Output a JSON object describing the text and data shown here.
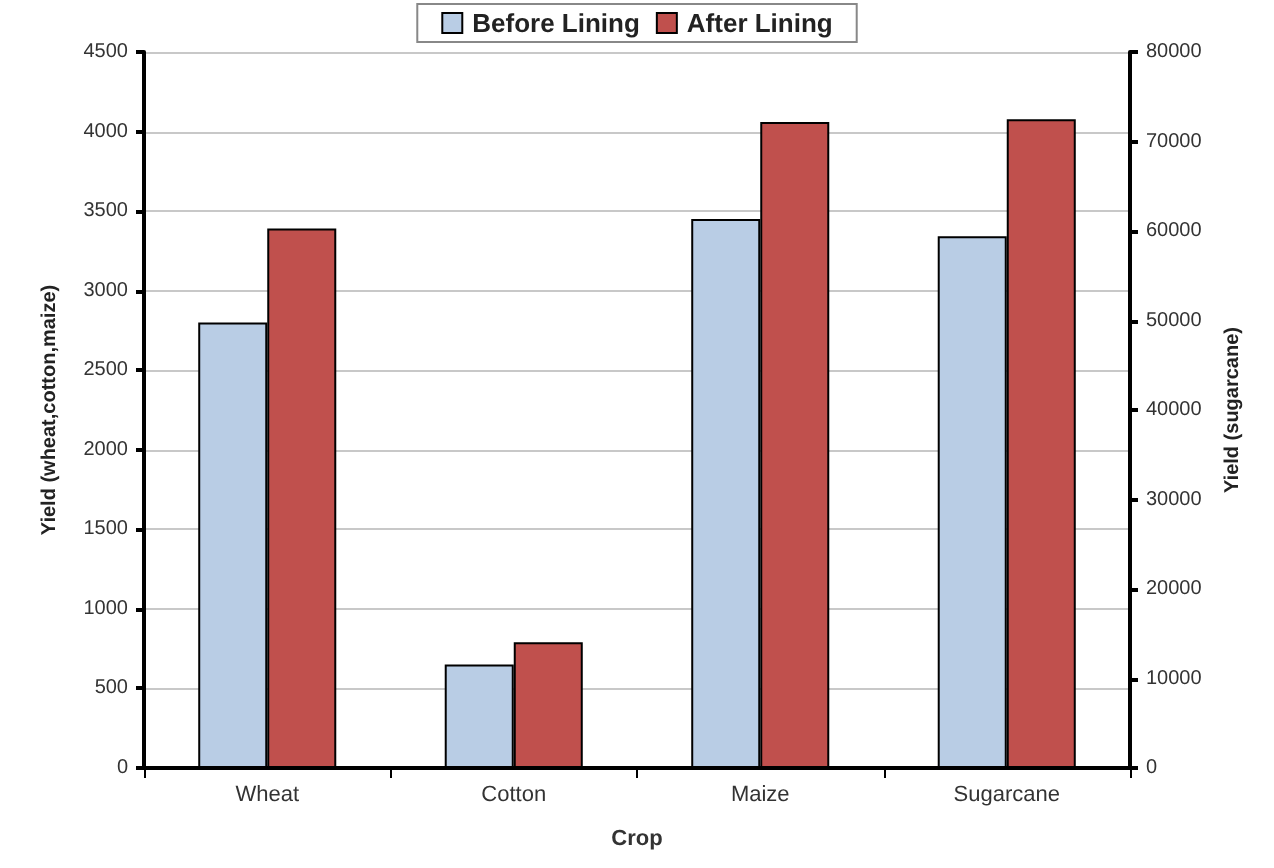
{
  "chart_data": {
    "type": "bar",
    "xlabel": "Crop",
    "ylabel": "Yield (wheat,cotton,maize)",
    "y2label": "Yield (sugarcane)",
    "categories": [
      "Wheat",
      "Cotton",
      "Maize",
      "Sugarcane"
    ],
    "series": [
      {
        "name": "Before Lining",
        "color": "#b9cde5",
        "values": [
          2800,
          650,
          3450,
          null
        ]
      },
      {
        "name": "After Lining",
        "color": "#c0504d",
        "values": [
          3390,
          790,
          4060,
          null
        ]
      },
      {
        "color": "#b9cde5",
        "axis": "y2",
        "values": [
          null,
          null,
          null,
          59400
        ]
      },
      {
        "color": "#c0504d",
        "axis": "y2",
        "values": [
          null,
          null,
          null,
          72500
        ]
      }
    ],
    "ylim": [
      0,
      4500
    ],
    "yticks": [
      0,
      500,
      1000,
      1500,
      2000,
      2500,
      3000,
      3500,
      4000,
      4500
    ],
    "y2lim": [
      0,
      80000
    ],
    "y2ticks": [
      0,
      10000,
      20000,
      30000,
      40000,
      50000,
      60000,
      70000,
      80000
    ],
    "grid": "y",
    "legend": "top"
  }
}
